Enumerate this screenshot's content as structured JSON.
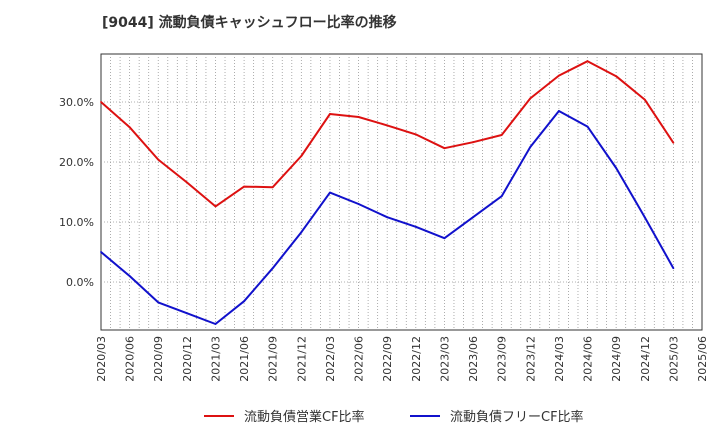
{
  "title": "[9044]  流動負債キャッシュフロー比率の推移",
  "chart_data": {
    "type": "line",
    "title": "[9044]  流動負債キャッシュフロー比率の推移",
    "x": [
      "2020/03",
      "2020/06",
      "2020/09",
      "2020/12",
      "2021/03",
      "2021/06",
      "2021/09",
      "2021/12",
      "2022/03",
      "2022/06",
      "2022/09",
      "2022/12",
      "2023/03",
      "2023/06",
      "2023/09",
      "2023/12",
      "2024/03",
      "2024/06",
      "2024/09",
      "2024/12",
      "2025/03",
      "2025/06"
    ],
    "y_ticks": [
      0,
      10,
      20,
      30
    ],
    "y_tick_labels": [
      "0.0%",
      "10.0%",
      "20.0%",
      "30.0%"
    ],
    "ylim": [
      -8,
      38
    ],
    "grid": true,
    "legend_position": "bottom",
    "series": [
      {
        "name": "流動負債営業CF比率",
        "color": "#dd1111",
        "values": [
          30.0,
          25.8,
          20.4,
          16.6,
          12.6,
          15.9,
          15.8,
          21.0,
          28.0,
          27.5,
          26.1,
          24.6,
          22.3,
          23.3,
          24.5,
          30.6,
          34.4,
          36.8,
          34.3,
          30.4,
          23.2,
          null
        ]
      },
      {
        "name": "流動負債フリーCF比率",
        "color": "#1111cc",
        "values": [
          5.0,
          1.0,
          -3.4,
          -5.2,
          -7.0,
          -3.2,
          2.3,
          8.3,
          14.9,
          13.0,
          10.8,
          9.2,
          7.3,
          10.8,
          14.3,
          22.5,
          28.5,
          25.9,
          19.0,
          10.8,
          2.3,
          null
        ]
      }
    ]
  }
}
